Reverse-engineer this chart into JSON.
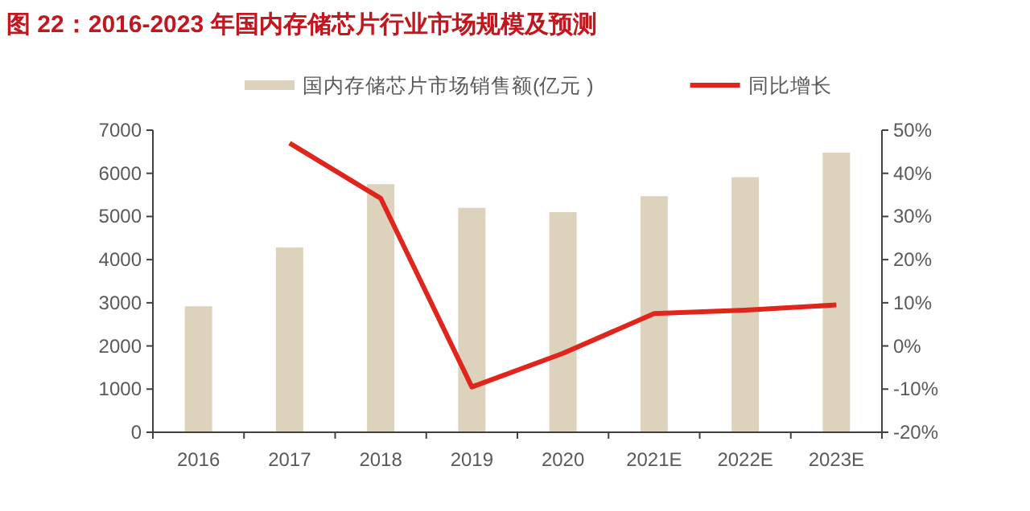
{
  "chart_data": {
    "type": "bar",
    "title": "图 22：2016-2023 年国内存储芯片行业市场规模及预测",
    "categories": [
      "2016",
      "2017",
      "2018",
      "2019",
      "2020",
      "2021E",
      "2022E",
      "2023E"
    ],
    "series": [
      {
        "name": "国内存储芯片市场销售额(亿元 )",
        "color": "#ddd3bd",
        "values": [
          2920,
          4280,
          5750,
          5200,
          5100,
          5470,
          5910,
          6480
        ]
      },
      {
        "name": "同比增长",
        "type": "line",
        "axis": "y2",
        "color": "#e0261c",
        "values": [
          null,
          47,
          34.2,
          -9.5,
          -1.7,
          7.5,
          8.3,
          9.5
        ]
      }
    ],
    "ylim": [
      0,
      7000
    ],
    "yticks": [
      0,
      1000,
      2000,
      3000,
      4000,
      5000,
      6000,
      7000
    ],
    "y2lim": [
      -20,
      50
    ],
    "y2ticks": [
      {
        "value": -20,
        "label": "-20%"
      },
      {
        "value": -10,
        "label": "-10%"
      },
      {
        "value": 0,
        "label": "0%"
      },
      {
        "value": 10,
        "label": "10%"
      },
      {
        "value": 20,
        "label": "20%"
      },
      {
        "value": 30,
        "label": "30%"
      },
      {
        "value": 40,
        "label": "40%"
      },
      {
        "value": 50,
        "label": "50%"
      }
    ],
    "grid": false,
    "legend": "top",
    "marker": "none",
    "line_style": "solid"
  }
}
